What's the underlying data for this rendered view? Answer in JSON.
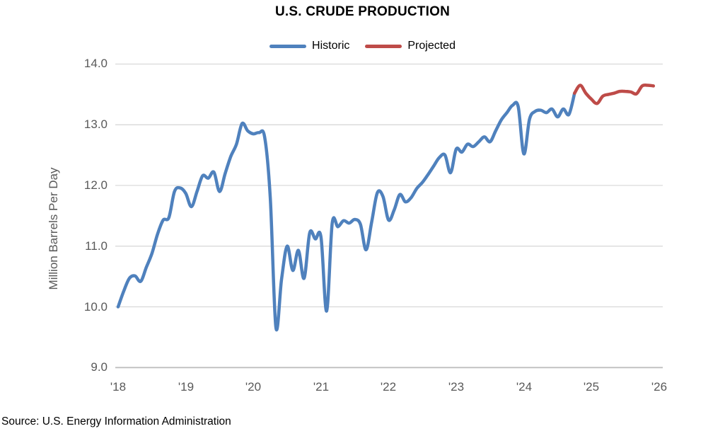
{
  "page": {
    "background": "#ffffff"
  },
  "chart_data": {
    "type": "line",
    "title": "U.S. CRUDE PRODUCTION",
    "ylabel": "Million Barrels Per Day",
    "source_note": "Source: U.S. Energy Information Administration",
    "grid": "horizontal-only",
    "legend_position": "top-center",
    "x_axis": {
      "start_year": 2018,
      "end_year": 2026,
      "tick_labels": [
        "'18",
        "'19",
        "'20",
        "'21",
        "'22",
        "'23",
        "'24",
        "'25",
        "'26"
      ]
    },
    "y_axis": {
      "range": [
        9.0,
        14.0
      ],
      "ticks": [
        14.0,
        13.0,
        12.0,
        11.0,
        10.0,
        9.0
      ],
      "tick_labels": [
        "14.0",
        "13.0",
        "12.0",
        "11.0",
        "10.0",
        "9.0"
      ]
    },
    "colors": {
      "historic": "#4F81BD",
      "projected": "#BE4B48",
      "gridline": "#D9D9D9",
      "axis_line": "#BFBFBF",
      "tick_text": "#595959"
    },
    "series": [
      {
        "name": "Historic",
        "color": "#4F81BD",
        "start_month_index": 0,
        "first_month": "Jan 2018",
        "monthly_values": [
          10.0,
          10.26,
          10.47,
          10.51,
          10.42,
          10.65,
          10.88,
          11.2,
          11.43,
          11.47,
          11.9,
          11.96,
          11.87,
          11.65,
          11.9,
          12.16,
          12.12,
          12.22,
          11.9,
          12.2,
          12.48,
          12.68,
          13.02,
          12.9,
          12.85,
          12.87,
          12.8,
          11.8,
          9.66,
          10.45,
          11.0,
          10.6,
          10.93,
          10.47,
          11.22,
          11.12,
          11.15,
          9.93,
          11.38,
          11.32,
          11.42,
          11.38,
          11.44,
          11.36,
          10.94,
          11.4,
          11.88,
          11.82,
          11.43,
          11.6,
          11.85,
          11.73,
          11.8,
          11.95,
          12.05,
          12.18,
          12.32,
          12.46,
          12.5,
          12.21,
          12.6,
          12.55,
          12.68,
          12.64,
          12.72,
          12.8,
          12.72,
          12.9,
          13.08,
          13.2,
          13.32,
          13.3,
          12.52,
          13.09,
          13.22,
          13.24,
          13.2,
          13.26,
          13.13,
          13.26,
          13.17,
          13.52
        ]
      },
      {
        "name": "Projected",
        "color": "#BE4B48",
        "start_month_index": 81,
        "first_month": "Oct 2024",
        "monthly_values": [
          13.52,
          13.65,
          13.52,
          13.42,
          13.35,
          13.47,
          13.5,
          13.52,
          13.55,
          13.55,
          13.54,
          13.51,
          13.64,
          13.65,
          13.64
        ]
      }
    ]
  }
}
